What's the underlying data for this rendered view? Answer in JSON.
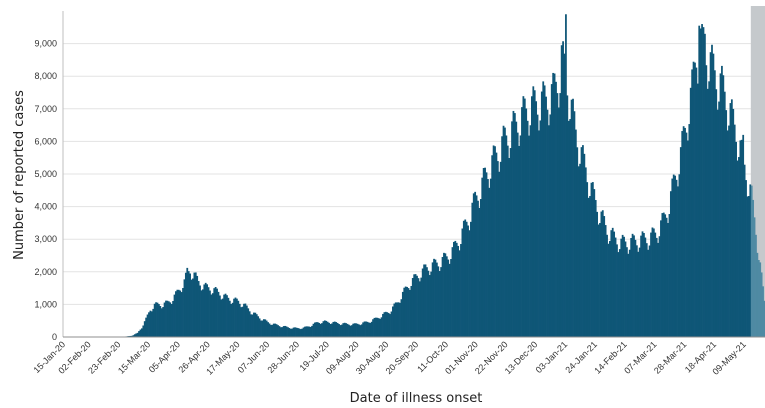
{
  "chart_data": {
    "type": "bar",
    "xlabel": "Date of illness onset",
    "ylabel": "Number of reported cases",
    "ylim": [
      0,
      10000
    ],
    "x_range": [
      "2020-01-13",
      "2021-05-22"
    ],
    "grid": true,
    "y_ticks": [
      {
        "value": 0,
        "label": "0"
      },
      {
        "value": 1000,
        "label": "1,000"
      },
      {
        "value": 2000,
        "label": "2,000"
      },
      {
        "value": 3000,
        "label": "3,000"
      },
      {
        "value": 4000,
        "label": "4,000"
      },
      {
        "value": 5000,
        "label": "5,000"
      },
      {
        "value": 6000,
        "label": "6,000"
      },
      {
        "value": 7000,
        "label": "7,000"
      },
      {
        "value": 8000,
        "label": "8,000"
      },
      {
        "value": 9000,
        "label": "9,000"
      }
    ],
    "x_ticks": [
      {
        "date": "2020-01-15",
        "label": "15-Jan-20"
      },
      {
        "date": "2020-02-02",
        "label": "02-Feb-20"
      },
      {
        "date": "2020-02-23",
        "label": "23-Feb-20"
      },
      {
        "date": "2020-03-15",
        "label": "15-Mar-20"
      },
      {
        "date": "2020-04-05",
        "label": "05-Apr-20"
      },
      {
        "date": "2020-04-26",
        "label": "26-Apr-20"
      },
      {
        "date": "2020-05-17",
        "label": "17-May-20"
      },
      {
        "date": "2020-06-07",
        "label": "07-Jun-20"
      },
      {
        "date": "2020-06-28",
        "label": "28-Jun-20"
      },
      {
        "date": "2020-07-19",
        "label": "19-Jul-20"
      },
      {
        "date": "2020-08-09",
        "label": "09-Aug-20"
      },
      {
        "date": "2020-08-30",
        "label": "30-Aug-20"
      },
      {
        "date": "2020-09-20",
        "label": "20-Sep-20"
      },
      {
        "date": "2020-10-11",
        "label": "11-Oct-20"
      },
      {
        "date": "2020-11-01",
        "label": "01-Nov-20"
      },
      {
        "date": "2020-11-22",
        "label": "22-Nov-20"
      },
      {
        "date": "2020-12-13",
        "label": "13-Dec-20"
      },
      {
        "date": "2021-01-03",
        "label": "03-Jan-21"
      },
      {
        "date": "2021-01-24",
        "label": "24-Jan-21"
      },
      {
        "date": "2021-02-14",
        "label": "14-Feb-21"
      },
      {
        "date": "2021-03-07",
        "label": "07-Mar-21"
      },
      {
        "date": "2021-03-28",
        "label": "28-Mar-21"
      },
      {
        "date": "2021-04-18",
        "label": "18-Apr-21"
      },
      {
        "date": "2021-05-09",
        "label": "09-May-21"
      }
    ],
    "shaded_period": {
      "start": "2021-05-12",
      "end": "2021-05-22"
    },
    "series": [
      {
        "color": "#0f5677",
        "points": [
          [
            "2020-02-20",
            0
          ],
          [
            "2020-02-25",
            10
          ],
          [
            "2020-03-01",
            40
          ],
          [
            "2020-03-05",
            120
          ],
          [
            "2020-03-08",
            300
          ],
          [
            "2020-03-11",
            550
          ],
          [
            "2020-03-14",
            850
          ],
          [
            "2020-03-17",
            980
          ],
          [
            "2020-03-20",
            1000
          ],
          [
            "2020-03-23",
            1000
          ],
          [
            "2020-03-26",
            1050
          ],
          [
            "2020-03-29",
            1150
          ],
          [
            "2020-04-01",
            1300
          ],
          [
            "2020-04-04",
            1500
          ],
          [
            "2020-04-07",
            1700
          ],
          [
            "2020-04-09",
            1950
          ],
          [
            "2020-04-11",
            2050
          ],
          [
            "2020-04-14",
            1900
          ],
          [
            "2020-04-17",
            1700
          ],
          [
            "2020-04-21",
            1550
          ],
          [
            "2020-04-25",
            1500
          ],
          [
            "2020-04-30",
            1400
          ],
          [
            "2020-05-05",
            1250
          ],
          [
            "2020-05-10",
            1150
          ],
          [
            "2020-05-15",
            1100
          ],
          [
            "2020-05-20",
            950
          ],
          [
            "2020-05-25",
            750
          ],
          [
            "2020-05-30",
            600
          ],
          [
            "2020-06-05",
            450
          ],
          [
            "2020-06-10",
            380
          ],
          [
            "2020-06-15",
            330
          ],
          [
            "2020-06-20",
            290
          ],
          [
            "2020-06-25",
            270
          ],
          [
            "2020-06-30",
            280
          ],
          [
            "2020-07-05",
            350
          ],
          [
            "2020-07-10",
            450
          ],
          [
            "2020-07-15",
            470
          ],
          [
            "2020-07-20",
            450
          ],
          [
            "2020-07-25",
            420
          ],
          [
            "2020-07-30",
            400
          ],
          [
            "2020-08-05",
            390
          ],
          [
            "2020-08-10",
            420
          ],
          [
            "2020-08-15",
            470
          ],
          [
            "2020-08-20",
            560
          ],
          [
            "2020-08-25",
            680
          ],
          [
            "2020-08-30",
            800
          ],
          [
            "2020-09-04",
            1050
          ],
          [
            "2020-09-09",
            1400
          ],
          [
            "2020-09-14",
            1700
          ],
          [
            "2020-09-19",
            1900
          ],
          [
            "2020-09-24",
            2100
          ],
          [
            "2020-09-29",
            2200
          ],
          [
            "2020-10-04",
            2300
          ],
          [
            "2020-10-09",
            2450
          ],
          [
            "2020-10-14",
            2700
          ],
          [
            "2020-10-19",
            3100
          ],
          [
            "2020-10-24",
            3600
          ],
          [
            "2020-10-29",
            4200
          ],
          [
            "2020-11-03",
            4700
          ],
          [
            "2020-11-08",
            5200
          ],
          [
            "2020-11-13",
            5600
          ],
          [
            "2020-11-18",
            6000
          ],
          [
            "2020-11-23",
            6300
          ],
          [
            "2020-11-28",
            6600
          ],
          [
            "2020-12-03",
            6900
          ],
          [
            "2020-12-08",
            7100
          ],
          [
            "2020-12-13",
            7200
          ],
          [
            "2020-12-18",
            7300
          ],
          [
            "2020-12-23",
            7500
          ],
          [
            "2020-12-27",
            8000
          ],
          [
            "2020-12-30",
            8400
          ],
          [
            "2021-01-02",
            7800
          ],
          [
            "2021-01-05",
            7000
          ],
          [
            "2021-01-08",
            6300
          ],
          [
            "2021-01-12",
            5600
          ],
          [
            "2021-01-16",
            5000
          ],
          [
            "2021-01-20",
            4400
          ],
          [
            "2021-01-25",
            3800
          ],
          [
            "2021-01-30",
            3300
          ],
          [
            "2021-02-04",
            3050
          ],
          [
            "2021-02-09",
            2900
          ],
          [
            "2021-02-14",
            2900
          ],
          [
            "2021-02-19",
            2950
          ],
          [
            "2021-02-24",
            3000
          ],
          [
            "2021-03-01",
            3050
          ],
          [
            "2021-03-06",
            3200
          ],
          [
            "2021-03-11",
            3600
          ],
          [
            "2021-03-15",
            4100
          ],
          [
            "2021-03-19",
            4900
          ],
          [
            "2021-03-23",
            5600
          ],
          [
            "2021-03-27",
            6600
          ],
          [
            "2021-03-31",
            7600
          ],
          [
            "2021-04-03",
            8700
          ],
          [
            "2021-04-06",
            9100
          ],
          [
            "2021-04-09",
            8900
          ],
          [
            "2021-04-13",
            8400
          ],
          [
            "2021-04-17",
            8000
          ],
          [
            "2021-04-21",
            7700
          ],
          [
            "2021-04-25",
            7200
          ],
          [
            "2021-04-29",
            6600
          ],
          [
            "2021-05-03",
            6000
          ],
          [
            "2021-05-06",
            5400
          ],
          [
            "2021-05-09",
            4900
          ],
          [
            "2021-05-12",
            4300
          ],
          [
            "2021-05-15",
            3300
          ],
          [
            "2021-05-18",
            2200
          ],
          [
            "2021-05-21",
            1100
          ],
          [
            "2021-05-22",
            900
          ]
        ],
        "spikes": [
          [
            "2020-04-09",
            2120
          ],
          [
            "2020-12-29",
            8950
          ],
          [
            "2021-01-01",
            9900
          ],
          [
            "2021-04-05",
            9550
          ],
          [
            "2021-04-07",
            9600
          ],
          [
            "2021-04-09",
            9300
          ],
          [
            "2021-05-06",
            6200
          ]
        ]
      }
    ]
  }
}
